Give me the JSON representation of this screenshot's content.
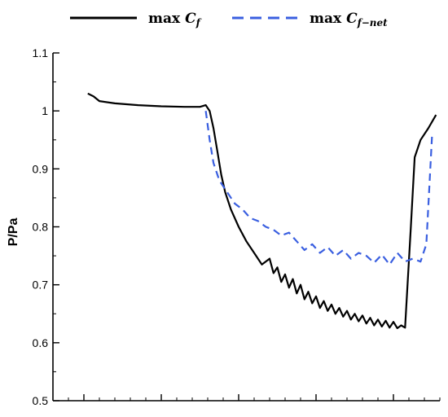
{
  "chart_data": {
    "type": "line",
    "title": "",
    "xlabel": "",
    "ylabel": "P/Pa",
    "ylim": [
      0.5,
      1.1
    ],
    "yticks": [
      "0.5",
      "0.6",
      "0.7",
      "0.8",
      "0.9",
      "1",
      "1.1"
    ],
    "xlim": [
      0,
      100
    ],
    "grid": false,
    "legend_position": "top",
    "series": [
      {
        "name": "max C_f",
        "legend_prefix": "max",
        "legend_symbol": "C",
        "legend_subscript": "f",
        "color": "#000000",
        "line_style": "solid",
        "x": [
          9,
          10.5,
          12,
          16,
          22,
          28,
          34,
          38,
          39.5,
          40.5,
          41.5,
          42.5,
          43.5,
          44.5,
          46,
          48,
          50,
          52,
          54,
          56,
          57,
          58,
          59,
          60,
          61,
          62,
          63,
          64,
          65,
          66,
          67,
          68,
          69,
          70,
          71,
          72,
          73,
          74,
          75,
          76,
          77,
          78,
          79,
          80,
          81,
          82,
          83,
          84,
          85,
          86,
          87,
          88,
          89,
          90,
          91,
          92.5,
          93.5,
          95,
          97,
          99
        ],
        "values": [
          1.03,
          1.025,
          1.017,
          1.013,
          1.01,
          1.008,
          1.007,
          1.007,
          1.01,
          1.0,
          0.97,
          0.93,
          0.89,
          0.86,
          0.83,
          0.8,
          0.775,
          0.755,
          0.735,
          0.745,
          0.72,
          0.73,
          0.705,
          0.718,
          0.695,
          0.71,
          0.685,
          0.7,
          0.675,
          0.688,
          0.668,
          0.68,
          0.66,
          0.672,
          0.655,
          0.666,
          0.65,
          0.66,
          0.645,
          0.655,
          0.64,
          0.65,
          0.637,
          0.647,
          0.633,
          0.643,
          0.63,
          0.64,
          0.628,
          0.638,
          0.626,
          0.636,
          0.625,
          0.63,
          0.626,
          0.8,
          0.92,
          0.95,
          0.97,
          0.993
        ]
      },
      {
        "name": "max C_f-net",
        "legend_prefix": "max",
        "legend_symbol": "C",
        "legend_subscript": "f−net",
        "color": "#3a5fe0",
        "line_style": "dashed",
        "x": [
          39.5,
          40.5,
          41.5,
          43,
          45,
          47,
          49,
          51,
          53,
          55,
          57,
          59,
          61,
          63,
          65,
          67,
          69,
          71,
          73,
          75,
          77,
          79,
          81,
          83,
          85,
          87,
          89,
          91,
          93,
          95,
          96.5,
          98
        ],
        "values": [
          1.0,
          0.95,
          0.91,
          0.88,
          0.86,
          0.84,
          0.83,
          0.815,
          0.81,
          0.8,
          0.795,
          0.785,
          0.79,
          0.775,
          0.76,
          0.77,
          0.755,
          0.765,
          0.75,
          0.76,
          0.745,
          0.755,
          0.75,
          0.738,
          0.752,
          0.735,
          0.755,
          0.74,
          0.745,
          0.74,
          0.77,
          0.96
        ]
      }
    ]
  }
}
